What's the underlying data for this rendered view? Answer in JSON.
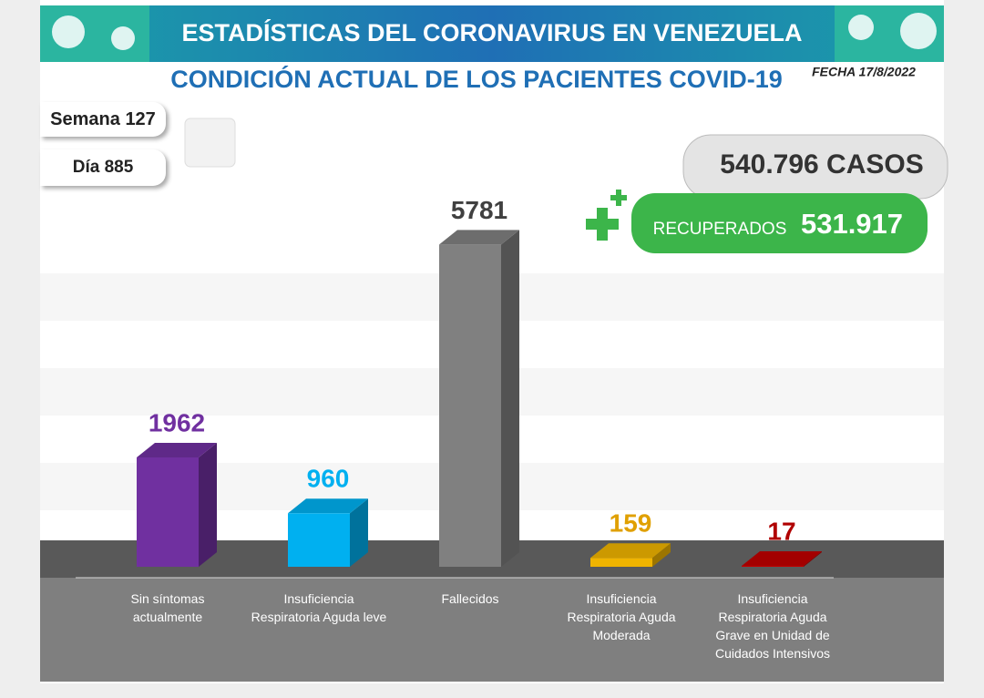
{
  "header": {
    "banner": "ESTADÍSTICAS DEL CORONAVIRUS EN VENEZUELA",
    "date": "FECHA 17/8/2022",
    "week": "Semana 127",
    "day": "Día 885"
  },
  "summary": {
    "cases": "540.796 CASOS",
    "recovered_label": "RECUPERADOS",
    "recovered_value": "531.917"
  },
  "chart_data": {
    "type": "bar",
    "title": "CONDICIÓN ACTUAL DE LOS PACIENTES COVID-19",
    "categories": [
      "Sin síntomas actualmente",
      "Insuficiencia Respiratoria Aguda leve",
      "Fallecidos",
      "Insuficiencia Respiratoria Aguda Moderada",
      "Insuficiencia Respiratoria Aguda Grave en Unidad de Cuidados Intensivos"
    ],
    "values": [
      1962,
      960,
      5781,
      159,
      17
    ],
    "colors": [
      "#7030a0",
      "#00b0f0",
      "#808080",
      "#f0b400",
      "#c00000"
    ],
    "label_colors": [
      "#7030a0",
      "#00b0f0",
      "#404040",
      "#e0a000",
      "#b00000"
    ],
    "ylim": [
      0,
      6000
    ]
  }
}
